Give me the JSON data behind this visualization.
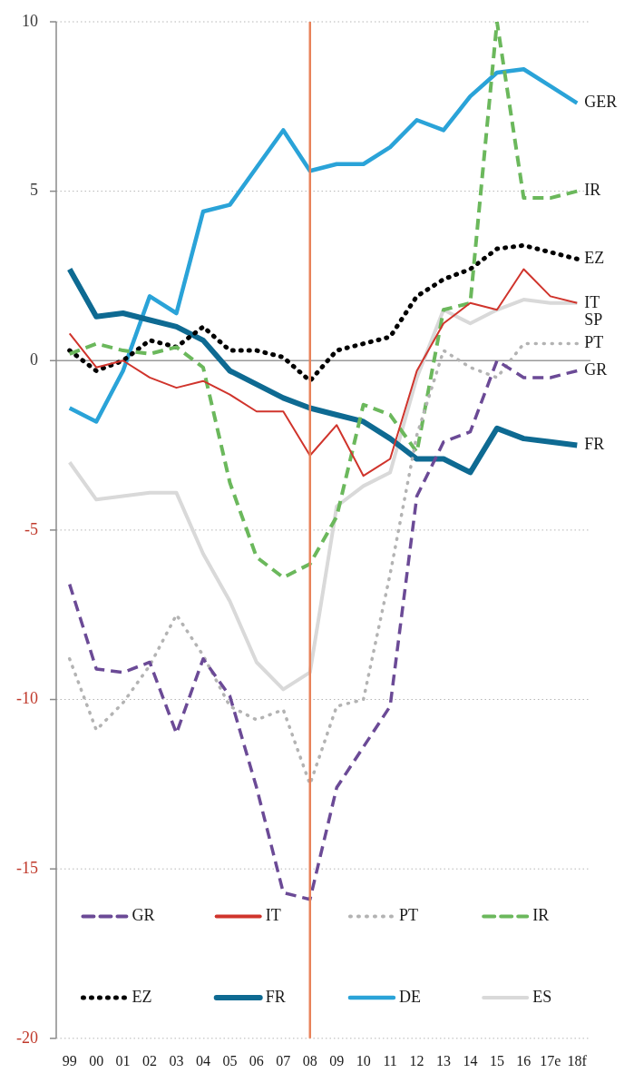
{
  "chart_data": {
    "type": "line",
    "categories": [
      "99",
      "00",
      "01",
      "02",
      "03",
      "04",
      "05",
      "06",
      "07",
      "08",
      "09",
      "10",
      "11",
      "12",
      "13",
      "14",
      "15",
      "16",
      "17e",
      "18f"
    ],
    "ylim": [
      -20,
      10
    ],
    "yticks": [
      -20,
      -15,
      -10,
      -5,
      0,
      5,
      10
    ],
    "grid": "y",
    "legend": "bottom",
    "marker": "none",
    "series": [
      {
        "name": "GR",
        "color": "#6b4a96",
        "line_style": "dashed",
        "values": [
          -6.6,
          -9.1,
          -9.2,
          -8.9,
          -11.0,
          -8.8,
          -9.9,
          -12.6,
          -15.7,
          -15.9,
          -12.6,
          -11.4,
          -10.2,
          -4.0,
          -2.4,
          -2.1,
          0.0,
          -0.5,
          -0.5,
          -0.3
        ]
      },
      {
        "name": "IT",
        "color": "#d0342c",
        "line_style": "solid",
        "values": [
          0.8,
          -0.2,
          0.0,
          -0.5,
          -0.8,
          -0.6,
          -1.0,
          -1.5,
          -1.5,
          -2.8,
          -1.9,
          -3.4,
          -2.9,
          -0.3,
          1.1,
          1.7,
          1.5,
          2.7,
          1.9,
          1.7
        ]
      },
      {
        "name": "PT",
        "color": "#b3b3b3",
        "line_style": "dotted",
        "values": [
          -8.8,
          -10.9,
          -10.1,
          -9.0,
          -7.5,
          -8.7,
          -10.2,
          -10.6,
          -10.3,
          -12.5,
          -10.2,
          -10.0,
          -6.3,
          -2.2,
          0.3,
          -0.2,
          -0.5,
          0.5,
          0.5,
          0.5
        ]
      },
      {
        "name": "IR",
        "color": "#6bb85c",
        "line_style": "dashed",
        "values": [
          0.2,
          0.5,
          0.3,
          0.2,
          0.4,
          -0.2,
          -3.6,
          -5.8,
          -6.4,
          -6.0,
          -4.6,
          -1.3,
          -1.6,
          -2.7,
          1.5,
          1.7,
          10.0,
          4.8,
          4.8,
          5.0
        ]
      },
      {
        "name": "EZ",
        "color": "#000000",
        "line_style": "dotted",
        "values": [
          0.3,
          -0.3,
          0.0,
          0.6,
          0.4,
          1.0,
          0.3,
          0.3,
          0.1,
          -0.6,
          0.3,
          0.5,
          0.7,
          1.9,
          2.4,
          2.7,
          3.3,
          3.4,
          3.2,
          3.0
        ]
      },
      {
        "name": "FR",
        "color": "#0e6a92",
        "line_style": "solid",
        "values": [
          2.7,
          1.3,
          1.4,
          1.2,
          1.0,
          0.6,
          -0.3,
          -0.7,
          -1.1,
          -1.4,
          -1.6,
          -1.8,
          -2.3,
          -2.9,
          -2.9,
          -3.3,
          -2.0,
          -2.3,
          -2.4,
          -2.5
        ]
      },
      {
        "name": "DE",
        "color": "#2aa3d8",
        "line_style": "solid",
        "values": [
          -1.4,
          -1.8,
          -0.3,
          1.9,
          1.4,
          4.4,
          4.6,
          5.7,
          6.8,
          5.6,
          5.8,
          5.8,
          6.3,
          7.1,
          6.8,
          7.8,
          8.5,
          8.6,
          8.1,
          7.6
        ]
      },
      {
        "name": "ES",
        "color": "#d9d9d9",
        "line_style": "solid",
        "values": [
          -3.0,
          -4.1,
          -4.0,
          -3.9,
          -3.9,
          -5.7,
          -7.1,
          -8.9,
          -9.7,
          -9.2,
          -4.3,
          -3.7,
          -3.3,
          -0.5,
          1.5,
          1.1,
          1.5,
          1.8,
          1.7,
          1.7
        ]
      }
    ],
    "ref_lines": [
      {
        "axis": "x",
        "value": "08",
        "color": "#e8825a"
      }
    ],
    "annotations": [
      {
        "text": "GER",
        "x": "18f",
        "y": 7.6
      },
      {
        "text": "IR",
        "x": "18f",
        "y": 5.0
      },
      {
        "text": "EZ",
        "x": "18f",
        "y": 3.0
      },
      {
        "text": "IT",
        "x": "18f",
        "y": 1.7
      },
      {
        "text": "SP",
        "x": "18f",
        "y": 1.7
      },
      {
        "text": "PT",
        "x": "18f",
        "y": 0.5
      },
      {
        "text": "GR",
        "x": "18f",
        "y": -0.3
      },
      {
        "text": "FR",
        "x": "18f",
        "y": -2.5
      }
    ]
  }
}
